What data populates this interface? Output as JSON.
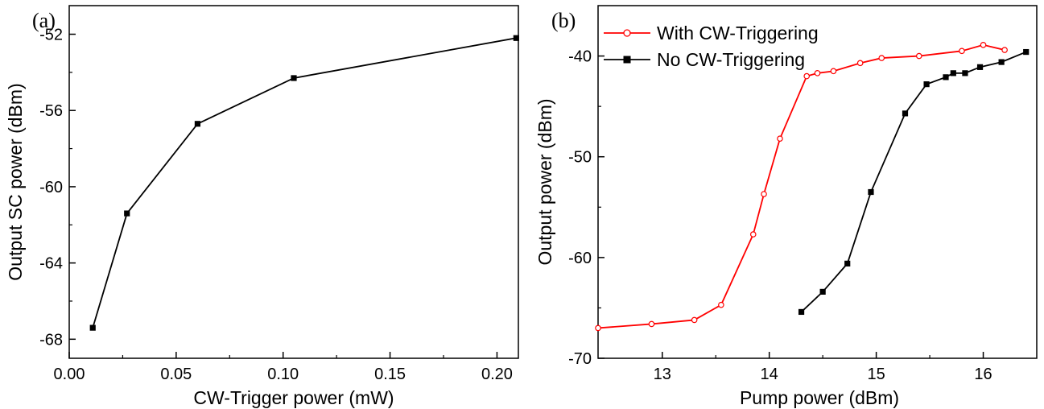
{
  "chart_data": [
    {
      "panel_label": "(a)",
      "type": "line",
      "xlabel": "CW-Trigger power (mW)",
      "ylabel": "Output SC power (dBm)",
      "xlim": [
        0.0,
        0.21
      ],
      "ylim": [
        -69,
        -50.5
      ],
      "xticks": [
        0.0,
        0.05,
        0.1,
        0.15,
        0.2
      ],
      "xtick_labels": [
        "0.00",
        "0.05",
        "0.10",
        "0.15",
        "0.20"
      ],
      "yticks": [
        -68,
        -64,
        -60,
        -56,
        -52
      ],
      "ytick_labels": [
        "-68",
        "-64",
        "-60",
        "-56",
        "-52"
      ],
      "grid": false,
      "series": [
        {
          "color": "#000000",
          "marker": "filled-square",
          "points": [
            [
              0.011,
              -67.4
            ],
            [
              0.027,
              -61.4
            ],
            [
              0.06,
              -56.7
            ],
            [
              0.105,
              -54.3
            ],
            [
              0.209,
              -52.2
            ]
          ]
        }
      ]
    },
    {
      "panel_label": "(b)",
      "type": "line",
      "xlabel": "Pump power (dBm)",
      "ylabel": "Output power (dBm)",
      "xlim": [
        12.4,
        16.5
      ],
      "ylim": [
        -70,
        -35
      ],
      "xticks": [
        13,
        14,
        15,
        16
      ],
      "xtick_labels": [
        "13",
        "14",
        "15",
        "16"
      ],
      "yticks": [
        -70,
        -60,
        -50,
        -40
      ],
      "ytick_labels": [
        "-70",
        "-60",
        "-50",
        "-40"
      ],
      "grid": false,
      "legend_position": "top-left",
      "series": [
        {
          "name": "With CW-Triggering",
          "color": "#ff0000",
          "marker": "open-circle",
          "points": [
            [
              12.4,
              -67.0
            ],
            [
              12.9,
              -66.6
            ],
            [
              13.3,
              -66.2
            ],
            [
              13.55,
              -64.7
            ],
            [
              13.85,
              -57.7
            ],
            [
              13.95,
              -53.7
            ],
            [
              14.1,
              -48.2
            ],
            [
              14.35,
              -42.0
            ],
            [
              14.45,
              -41.7
            ],
            [
              14.6,
              -41.5
            ],
            [
              14.85,
              -40.7
            ],
            [
              15.05,
              -40.2
            ],
            [
              15.4,
              -40.0
            ],
            [
              15.8,
              -39.5
            ],
            [
              16.0,
              -38.9
            ],
            [
              16.2,
              -39.4
            ]
          ]
        },
        {
          "name": "No CW-Triggering",
          "color": "#000000",
          "marker": "filled-square",
          "points": [
            [
              14.3,
              -65.4
            ],
            [
              14.5,
              -63.4
            ],
            [
              14.73,
              -60.6
            ],
            [
              14.95,
              -53.5
            ],
            [
              15.27,
              -45.7
            ],
            [
              15.47,
              -42.8
            ],
            [
              15.65,
              -42.1
            ],
            [
              15.72,
              -41.7
            ],
            [
              15.83,
              -41.7
            ],
            [
              15.97,
              -41.1
            ],
            [
              16.17,
              -40.6
            ],
            [
              16.4,
              -39.6
            ]
          ]
        }
      ]
    }
  ]
}
